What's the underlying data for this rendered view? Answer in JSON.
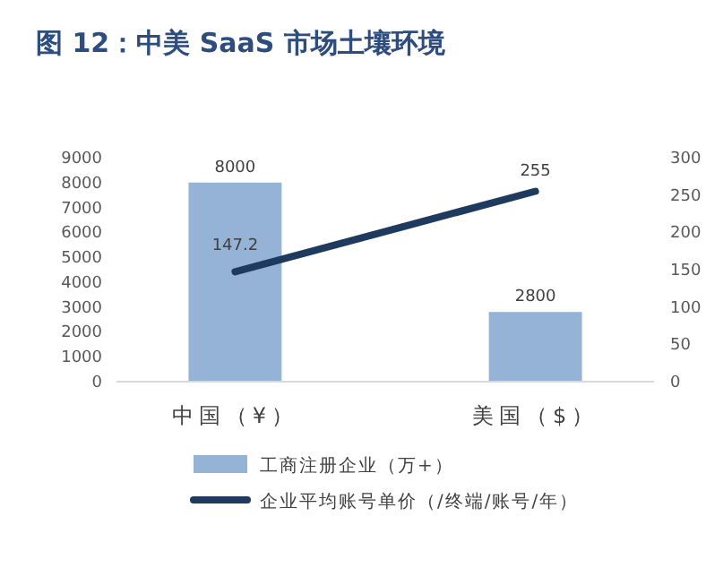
{
  "chart_data": {
    "type": "bar",
    "title": "图 12：中美 SaaS 市场土壤环境",
    "categories": [
      "中国（¥）",
      "美国（$）"
    ],
    "series": [
      {
        "name": "工商注册企业（万+）",
        "color": "#95b3d7",
        "values": [
          8000,
          2800
        ]
      },
      {
        "name": "企业平均账号单价（/终端/账号/年）",
        "type": "line",
        "axis": "y2",
        "color": "#1f3a5f",
        "values": [
          147.2,
          255
        ]
      }
    ],
    "ylim": [
      0,
      9000
    ],
    "yticks": [
      0,
      1000,
      2000,
      3000,
      4000,
      5000,
      6000,
      7000,
      8000,
      9000
    ],
    "y2lim": [
      0,
      300
    ],
    "y2ticks": [
      0,
      50,
      100,
      150,
      200,
      250,
      300
    ],
    "data_labels": true,
    "legend": "bottom",
    "grid": false,
    "marker": "none"
  }
}
